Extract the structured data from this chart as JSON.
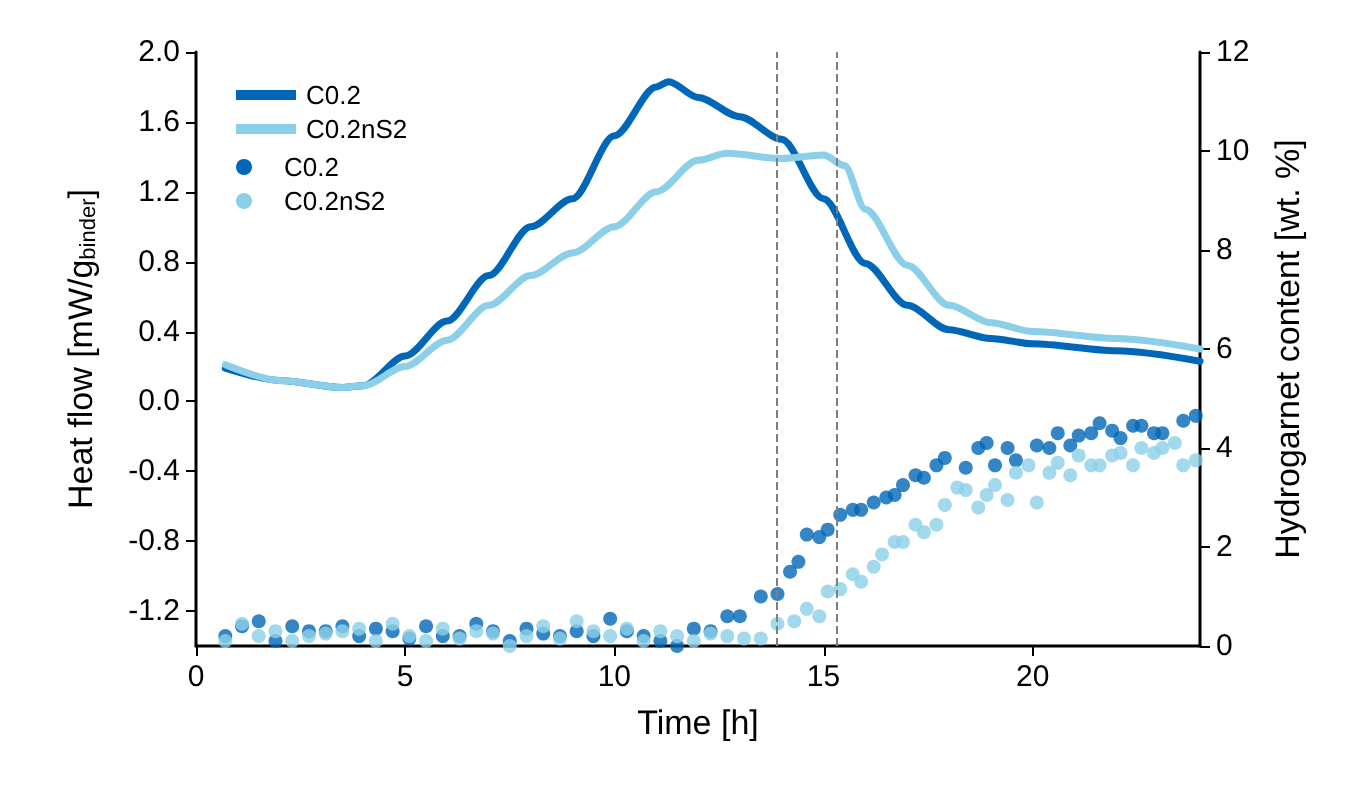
{
  "chart_data": {
    "type": "line",
    "xlabel": "Time [h]",
    "ylabel": "Heat flow [mW/g$_{binder}$]",
    "y2label": "Hydrogarnet content [wt. %]",
    "xlim": [
      0,
      24
    ],
    "xticks": [
      0,
      5,
      10,
      15,
      20
    ],
    "ylim": [
      -1.4,
      2.0
    ],
    "yticks": [
      -1.2,
      -0.8,
      -0.4,
      {
        "value": 0,
        "label": "0.0"
      },
      0.4,
      0.8,
      1.2,
      1.6,
      {
        "value": 2,
        "label": "2.0"
      }
    ],
    "y2lim": [
      0,
      12
    ],
    "y2ticks": [
      0,
      2,
      4,
      6,
      8,
      10,
      12
    ],
    "grid": false,
    "legend": "top left",
    "ref_lines": [
      {
        "axis": "x",
        "value": 13.9,
        "color": "#808080",
        "line_style": "dashed"
      },
      {
        "axis": "x",
        "value": 15.3,
        "color": "#808080",
        "line_style": "dashed"
      }
    ],
    "series": [
      {
        "name": "C0.2",
        "color": "#0066b8",
        "marker": "none",
        "x": [
          0.7,
          2,
          3.5,
          4,
          5,
          6,
          7,
          8,
          9,
          10,
          11,
          11.3,
          12,
          13,
          14,
          15,
          16,
          17,
          18,
          19,
          20,
          22,
          24
        ],
        "values": [
          0.19,
          0.12,
          0.08,
          0.09,
          0.26,
          0.46,
          0.72,
          1.0,
          1.16,
          1.52,
          1.8,
          1.83,
          1.74,
          1.63,
          1.5,
          1.16,
          0.79,
          0.55,
          0.41,
          0.36,
          0.33,
          0.29,
          0.23
        ]
      },
      {
        "name": "C0.2nS2",
        "color": "#8ccfe8",
        "marker": "none",
        "x": [
          0.7,
          2,
          3.5,
          4,
          5,
          6,
          7,
          8,
          9,
          10,
          11,
          12,
          12.7,
          14,
          15,
          15.5,
          16,
          17,
          18,
          19,
          20,
          22,
          24
        ],
        "values": [
          0.21,
          0.12,
          0.08,
          0.09,
          0.2,
          0.35,
          0.55,
          0.72,
          0.85,
          1.0,
          1.2,
          1.38,
          1.42,
          1.39,
          1.41,
          1.35,
          1.1,
          0.78,
          0.55,
          0.45,
          0.4,
          0.36,
          0.3
        ]
      },
      {
        "name": "C0.2",
        "type": "scatter",
        "axis": "y2",
        "color": "#0066b8",
        "marker": "circle",
        "x": [
          0.7,
          1.1,
          1.5,
          1.9,
          2.3,
          2.7,
          3.1,
          3.5,
          3.9,
          4.3,
          4.7,
          5.1,
          5.5,
          5.9,
          6.3,
          6.7,
          7.1,
          7.5,
          7.9,
          8.3,
          8.7,
          9.1,
          9.5,
          9.9,
          10.3,
          10.7,
          11.1,
          11.5,
          11.9,
          12.3,
          12.7,
          13.0,
          13.5,
          13.9,
          14.2,
          14.4,
          14.6,
          14.9,
          15.1,
          15.4,
          15.7,
          15.9,
          16.2,
          16.5,
          16.7,
          16.9,
          17.2,
          17.4,
          17.7,
          17.9,
          18.4,
          18.7,
          18.9,
          19.1,
          19.4,
          19.6,
          20.1,
          20.4,
          20.6,
          20.9,
          21.1,
          21.4,
          21.6,
          21.9,
          22.1,
          22.4,
          22.6,
          22.9,
          23.1,
          23.6,
          23.9
        ],
        "values": [
          0.2,
          0.4,
          0.5,
          0.1,
          0.4,
          0.3,
          0.3,
          0.4,
          0.2,
          0.35,
          0.3,
          0.15,
          0.4,
          0.2,
          0.2,
          0.45,
          0.3,
          0.1,
          0.35,
          0.25,
          0.2,
          0.3,
          0.2,
          0.55,
          0.3,
          0.2,
          0.1,
          0.0,
          0.35,
          0.3,
          0.6,
          0.6,
          1.0,
          1.05,
          1.5,
          1.7,
          2.25,
          2.2,
          2.35,
          2.65,
          2.75,
          2.75,
          2.9,
          3.0,
          3.05,
          3.25,
          3.45,
          3.4,
          3.65,
          3.8,
          3.6,
          4.0,
          4.1,
          3.65,
          4.0,
          3.75,
          4.05,
          4.0,
          4.3,
          4.05,
          4.25,
          4.3,
          4.5,
          4.35,
          4.2,
          4.45,
          4.45,
          4.3,
          4.3,
          4.55,
          4.65
        ]
      },
      {
        "name": "C0.2nS2",
        "type": "scatter",
        "axis": "y2",
        "color": "#8ccfe8",
        "marker": "circle",
        "x": [
          0.7,
          1.1,
          1.5,
          1.9,
          2.3,
          2.7,
          3.1,
          3.5,
          3.9,
          4.3,
          4.7,
          5.1,
          5.5,
          5.9,
          6.3,
          6.7,
          7.1,
          7.5,
          7.9,
          8.3,
          8.7,
          9.1,
          9.5,
          9.9,
          10.3,
          10.7,
          11.1,
          11.5,
          11.9,
          12.3,
          12.7,
          13.1,
          13.5,
          13.9,
          14.3,
          14.6,
          14.9,
          15.1,
          15.4,
          15.7,
          15.9,
          16.2,
          16.4,
          16.7,
          16.9,
          17.2,
          17.4,
          17.7,
          17.9,
          18.2,
          18.4,
          18.7,
          18.9,
          19.1,
          19.4,
          19.6,
          19.9,
          20.1,
          20.4,
          20.6,
          20.9,
          21.1,
          21.4,
          21.6,
          21.9,
          22.1,
          22.4,
          22.6,
          22.9,
          23.1,
          23.4,
          23.6,
          23.9
        ],
        "values": [
          0.1,
          0.45,
          0.2,
          0.3,
          0.1,
          0.2,
          0.25,
          0.3,
          0.35,
          0.1,
          0.45,
          0.2,
          0.1,
          0.35,
          0.15,
          0.3,
          0.25,
          0.0,
          0.2,
          0.4,
          0.15,
          0.5,
          0.3,
          0.2,
          0.35,
          0.1,
          0.3,
          0.2,
          0.1,
          0.25,
          0.2,
          0.15,
          0.15,
          0.45,
          0.5,
          0.75,
          0.6,
          1.1,
          1.15,
          1.45,
          1.3,
          1.6,
          1.85,
          2.1,
          2.1,
          2.45,
          2.3,
          2.45,
          2.85,
          3.2,
          3.15,
          2.8,
          3.05,
          3.25,
          2.95,
          3.5,
          3.65,
          2.9,
          3.5,
          3.7,
          3.45,
          3.85,
          3.65,
          3.65,
          3.85,
          3.9,
          3.65,
          4.0,
          3.9,
          4.0,
          4.1,
          3.65,
          3.75
        ]
      }
    ]
  }
}
